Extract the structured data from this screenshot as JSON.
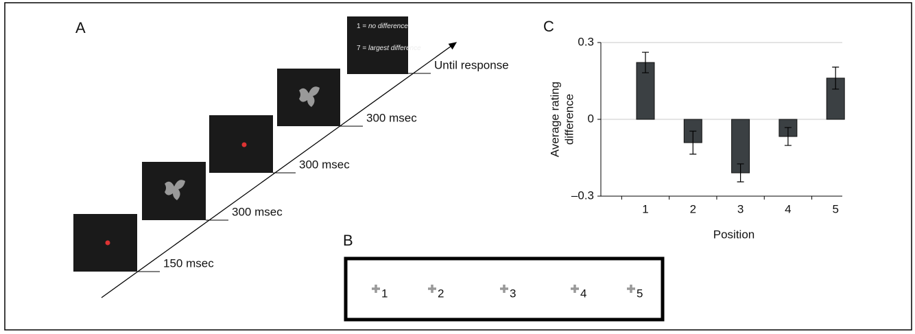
{
  "panel_a": {
    "label": "A",
    "intervals": [
      "150 msec",
      "300 msec",
      "300 msec",
      "300 msec",
      "Until response"
    ],
    "response_box": {
      "line1_prefix": "1 = ",
      "line1_italic": "no difference",
      "line2_prefix": "7 = ",
      "line2_italic": "largest difference"
    }
  },
  "panel_b": {
    "label": "B",
    "positions": [
      "1",
      "2",
      "3",
      "4",
      "5"
    ]
  },
  "chart_data": {
    "type": "bar",
    "panel_label": "C",
    "categories": [
      "1",
      "2",
      "3",
      "4",
      "5"
    ],
    "values": [
      0.222,
      -0.091,
      -0.209,
      -0.067,
      0.161
    ],
    "error": [
      0.04,
      0.045,
      0.035,
      0.035,
      0.043
    ],
    "color": "#3b4043",
    "ylim": [
      -0.3,
      0.3
    ],
    "yticks": [
      {
        "value": -0.3,
        "label": "–0.3"
      },
      0,
      0.3
    ],
    "grid": true,
    "xlabel": "Position",
    "ylabel": [
      "Average rating",
      "difference"
    ]
  }
}
